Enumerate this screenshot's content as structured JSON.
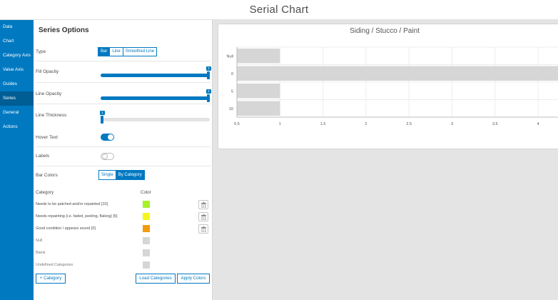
{
  "app": {
    "title": "Serial Chart"
  },
  "sidebar": {
    "items": [
      {
        "label": "Data",
        "active": false
      },
      {
        "label": "Chart",
        "active": false
      },
      {
        "label": "Category Axis",
        "active": false
      },
      {
        "label": "Value Axis",
        "active": false
      },
      {
        "label": "Guides",
        "active": false
      },
      {
        "label": "Series",
        "active": true
      },
      {
        "label": "General",
        "active": false
      },
      {
        "label": "Actions",
        "active": false
      }
    ]
  },
  "panel": {
    "title": "Series Options",
    "type": {
      "label": "Type",
      "options": [
        "Bar",
        "Line",
        "Smoothed Line"
      ],
      "selected": "Bar"
    },
    "fill_opacity": {
      "label": "Fill Opacity",
      "value": 1
    },
    "line_opacity": {
      "label": "Line Opacity",
      "value": 1
    },
    "line_thickness": {
      "label": "Line Thickness",
      "value": 1,
      "fraction": 0
    },
    "hover_text": {
      "label": "Hover Text",
      "on": true
    },
    "labels": {
      "label": "Labels",
      "on": false
    },
    "bar_colors": {
      "label": "Bar Colors",
      "options": [
        "Single",
        "By Category"
      ],
      "selected": "By Category"
    },
    "category_header": "Category",
    "color_header": "Color",
    "categories": [
      {
        "label": "Needs to be patched and/or repainted [10]",
        "color": "#a8f02a",
        "deletable": true,
        "muted": false
      },
      {
        "label": "Needs repainting (i.e. faded, peeling, flaking) [5]",
        "color": "#f5f51c",
        "deletable": true,
        "muted": false
      },
      {
        "label": "Good condition / appears sound [0]",
        "color": "#f29b0f",
        "deletable": true,
        "muted": false
      },
      {
        "label": "Null",
        "color": "#d6d6d6",
        "deletable": false,
        "muted": true
      },
      {
        "label": "Blank",
        "color": "#d6d6d6",
        "deletable": false,
        "muted": true
      },
      {
        "label": "Undefined Categories",
        "color": "#d6d6d6",
        "deletable": false,
        "muted": true
      }
    ],
    "buttons": {
      "add_category": "+ Category",
      "load_categories": "Load Categories",
      "apply_colors": "Apply Colors"
    }
  },
  "chart_data": {
    "type": "bar",
    "orientation": "horizontal",
    "title": "Siding / Stucco / Paint",
    "categories": [
      "Null",
      "0",
      "5",
      "10"
    ],
    "values": [
      1,
      4.25,
      1,
      1
    ],
    "x_ticks": [
      "0.5",
      "1",
      "1.5",
      "2",
      "2.5",
      "3",
      "3.5",
      "4"
    ],
    "xlim": [
      0.5,
      4.2
    ],
    "bar_color": "#d6d6d6",
    "grid": true
  }
}
